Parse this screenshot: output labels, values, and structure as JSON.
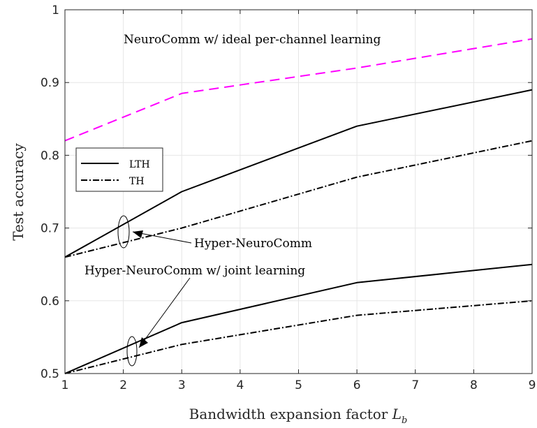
{
  "chart_data": {
    "type": "line",
    "xlabel": "Bandwidth expansion factor",
    "xlabel_symbol": "L",
    "xlabel_subscript": "b",
    "ylabel": "Test accuracy",
    "xlim": [
      1,
      9
    ],
    "ylim": [
      0.5,
      1
    ],
    "xticks": [
      1,
      2,
      3,
      4,
      5,
      6,
      7,
      8,
      9
    ],
    "yticks": [
      0.5,
      0.6,
      0.7,
      0.8,
      0.9,
      1
    ],
    "ytick_labels": [
      "0.5",
      "0.6",
      "0.7",
      "0.8",
      "0.9",
      "1"
    ],
    "grid": true,
    "legend_position": "upper-left",
    "series": [
      {
        "key": "ideal",
        "color": "#ff00ff",
        "dash": "dashed",
        "x": [
          1,
          3,
          6,
          9
        ],
        "values": [
          0.82,
          0.885,
          0.92,
          0.96
        ]
      },
      {
        "key": "hyper_lth",
        "name": "LTH",
        "color": "#000000",
        "dash": "solid",
        "x": [
          1,
          3,
          6,
          9
        ],
        "values": [
          0.66,
          0.75,
          0.84,
          0.89
        ]
      },
      {
        "key": "hyper_th",
        "name": "TH",
        "color": "#000000",
        "dash": "dashdot",
        "x": [
          1,
          3,
          6,
          9
        ],
        "values": [
          0.66,
          0.7,
          0.77,
          0.82
        ]
      },
      {
        "key": "joint_lth",
        "color": "#000000",
        "dash": "solid",
        "x": [
          1,
          3,
          6,
          9
        ],
        "values": [
          0.5,
          0.57,
          0.625,
          0.65
        ]
      },
      {
        "key": "joint_th",
        "color": "#000000",
        "dash": "dashdot",
        "x": [
          1,
          3,
          6,
          9
        ],
        "values": [
          0.5,
          0.54,
          0.58,
          0.6
        ]
      }
    ],
    "legend": [
      {
        "label": "LTH",
        "dash": "solid"
      },
      {
        "label": "TH",
        "dash": "dashdot"
      }
    ],
    "annotations": {
      "ideal": "NeuroComm w/ ideal per-channel learning",
      "hyper": "Hyper-NeuroComm",
      "joint": "Hyper-NeuroComm w/ joint learning"
    }
  }
}
